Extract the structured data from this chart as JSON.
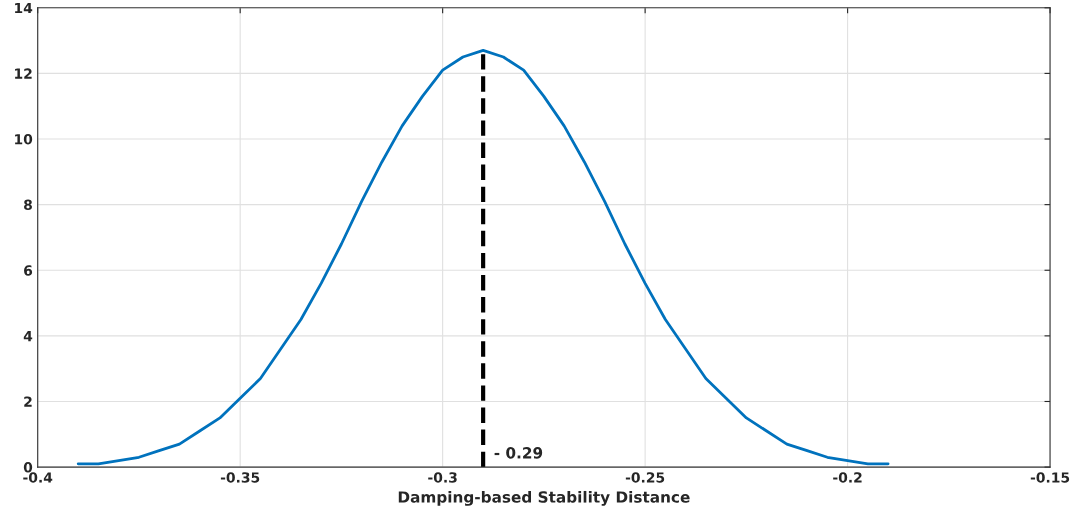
{
  "chart_data": {
    "type": "line",
    "xlabel": "Damping-based Stability Distance",
    "x": [
      -0.39,
      -0.385,
      -0.38,
      -0.375,
      -0.37,
      -0.365,
      -0.36,
      -0.355,
      -0.35,
      -0.345,
      -0.34,
      -0.335,
      -0.33,
      -0.325,
      -0.32,
      -0.315,
      -0.31,
      -0.305,
      -0.3,
      -0.295,
      -0.29,
      -0.285,
      -0.28,
      -0.275,
      -0.27,
      -0.265,
      -0.26,
      -0.255,
      -0.25,
      -0.245,
      -0.24,
      -0.235,
      -0.23,
      -0.225,
      -0.22,
      -0.215,
      -0.21,
      -0.205,
      -0.2,
      -0.195,
      -0.19
    ],
    "series": [
      {
        "color": "#0072bd",
        "values": [
          0.1,
          0.1,
          0.2,
          0.3,
          0.5,
          0.7,
          1.1,
          1.5,
          2.1,
          2.7,
          3.6,
          4.5,
          5.6,
          6.8,
          8.1,
          9.3,
          10.4,
          11.3,
          12.1,
          12.5,
          12.7,
          12.5,
          12.1,
          11.3,
          10.4,
          9.3,
          8.1,
          6.8,
          5.6,
          4.5,
          3.6,
          2.7,
          2.1,
          1.5,
          1.1,
          0.7,
          0.5,
          0.3,
          0.2,
          0.1,
          0.1
        ]
      }
    ],
    "xlim": [
      -0.4,
      -0.15
    ],
    "xticks": [
      -0.4,
      -0.35,
      -0.3,
      -0.25,
      -0.2,
      -0.15
    ],
    "ylim": [
      0,
      14
    ],
    "yticks": [
      0,
      2,
      4,
      6,
      8,
      10,
      12,
      14
    ],
    "ref_lines": [
      {
        "axis": "x",
        "value": -0.29,
        "label": "- 0.29",
        "color": "#000000",
        "line_style": "dashed"
      }
    ],
    "grid": true,
    "marker": "none",
    "line_style": "solid"
  }
}
